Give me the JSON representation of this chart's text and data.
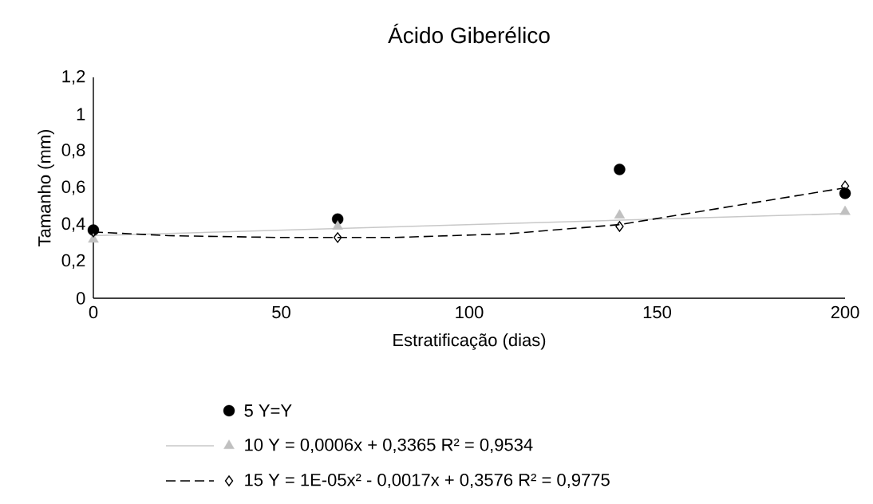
{
  "chart_data": {
    "type": "scatter",
    "title": "Ácido Giberélico",
    "xlabel": "Estratificação (dias)",
    "ylabel": "Tamanho  (mm)",
    "x": [
      0,
      65,
      140,
      200
    ],
    "series": [
      {
        "name": "5 Y=Y",
        "color": "#000000",
        "marker": "circle",
        "values": [
          0.37,
          0.43,
          0.7,
          0.57
        ]
      },
      {
        "name": "10 Y = 0,0006x + 0,3365 R² = 0,9534",
        "color": "#c0c0c0",
        "marker": "triangle",
        "values": [
          0.32,
          0.39,
          0.45,
          0.47
        ]
      },
      {
        "type": "line",
        "color": "#c8c8c8",
        "line_style": "solid",
        "marker": "none",
        "x": [
          0,
          200
        ],
        "values": [
          0.34,
          0.46
        ]
      },
      {
        "name": "15  Y = 1E-05x² - 0,0017x + 0,3576 R² = 0,9775",
        "color": "#000000",
        "marker": "diamond",
        "values": [
          0.36,
          0.33,
          0.39,
          0.61
        ]
      },
      {
        "type": "line",
        "color": "#000000",
        "line_style": "dashed",
        "marker": "none",
        "x": [
          0,
          20,
          50,
          80,
          110,
          140,
          170,
          200
        ],
        "values": [
          0.36,
          0.34,
          0.33,
          0.33,
          0.35,
          0.4,
          0.5,
          0.6
        ]
      }
    ],
    "xlim": [
      0,
      200
    ],
    "xticks": [
      0,
      50,
      100,
      150,
      200
    ],
    "ylim": [
      0,
      1.2
    ],
    "yticks": [
      0,
      {
        "value": 0.2,
        "label": "0,2"
      },
      {
        "value": 0.4,
        "label": "0,4"
      },
      {
        "value": 0.6,
        "label": "0,6"
      },
      {
        "value": 0.8,
        "label": "0,8"
      },
      1,
      {
        "value": 1.2,
        "label": "1,2"
      }
    ],
    "grid": false,
    "legend": "bottom"
  }
}
